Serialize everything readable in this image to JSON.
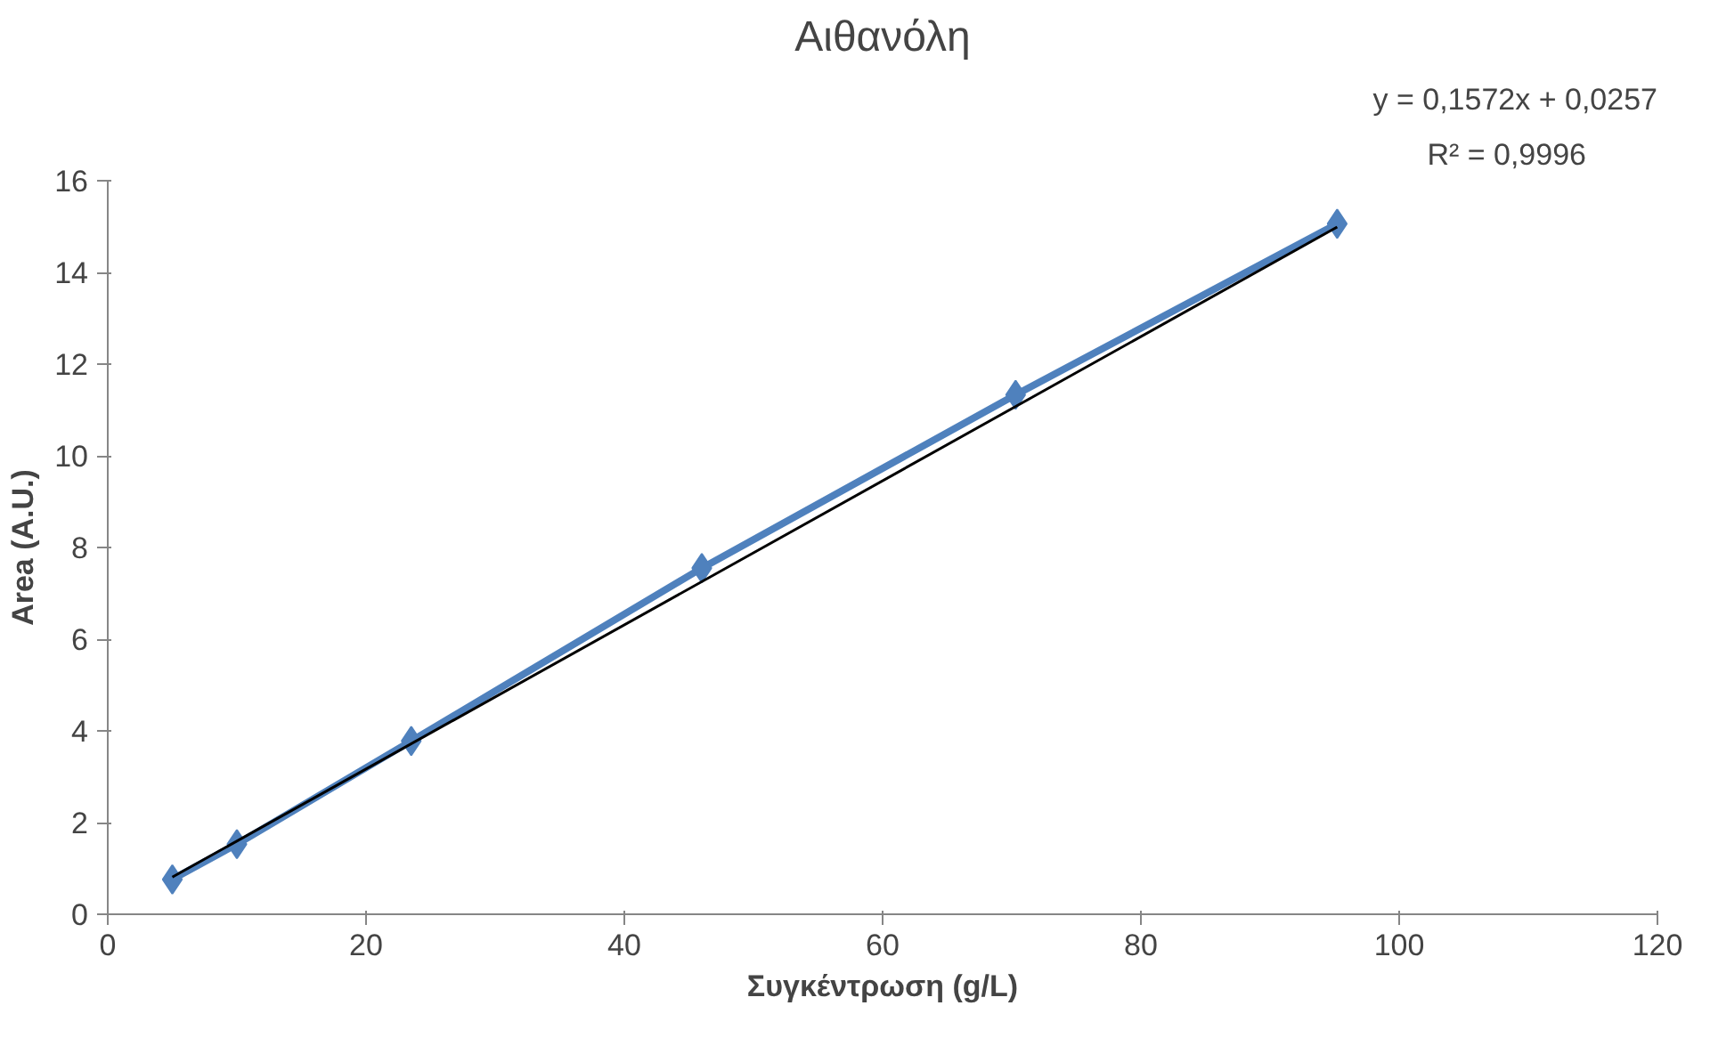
{
  "chart_data": {
    "type": "line",
    "title": "Αιθανόλη",
    "xlabel": "Συγκέντρωση (g/L)",
    "ylabel": "Area (A.U.)",
    "xlim": [
      0,
      120
    ],
    "xticks": [
      0,
      20,
      40,
      60,
      80,
      100,
      120
    ],
    "ylim": [
      0,
      16
    ],
    "yticks": [
      0,
      2,
      4,
      6,
      8,
      10,
      12,
      14,
      16
    ],
    "series": [
      {
        "color": "#4f81bd",
        "marker": "diamond",
        "x": [
          5,
          10,
          23.5,
          46,
          70.3,
          95.2
        ],
        "values": [
          0.76,
          1.53,
          3.78,
          7.55,
          11.33,
          15.06
        ]
      },
      {
        "color": "#000000",
        "marker": "none",
        "x": [
          5,
          95.2
        ],
        "values": [
          0.81,
          14.99
        ]
      }
    ],
    "annotations": [
      "y = 0,1572x + 0,0257",
      "R² = 0,9996"
    ],
    "grid": false
  }
}
